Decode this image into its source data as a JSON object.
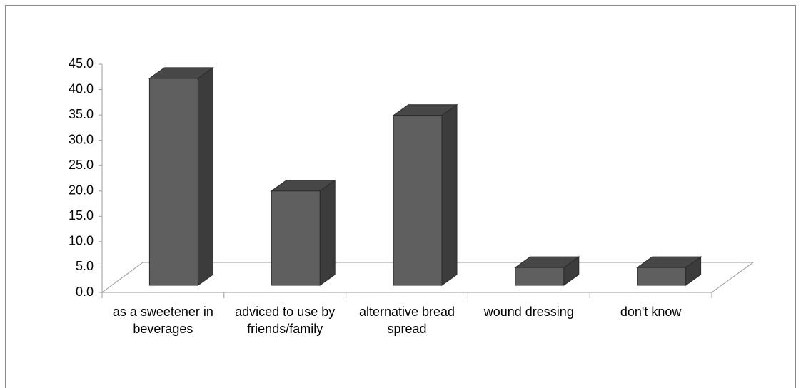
{
  "chart_data": {
    "type": "bar3d",
    "categories": [
      "as a sweetener in beverages",
      "adviced to use by friends/family",
      "alternative bread spread",
      "wound dressing",
      "don't know"
    ],
    "values": [
      40.8,
      18.6,
      33.5,
      3.5,
      3.5
    ],
    "color": "#5f5f5f",
    "ylim": [
      0,
      45
    ],
    "yticks": [
      {
        "value": 0,
        "label": "0.0"
      },
      {
        "value": 5,
        "label": "5.0"
      },
      {
        "value": 10,
        "label": "10.0"
      },
      {
        "value": 15,
        "label": "15.0"
      },
      {
        "value": 20,
        "label": "20.0"
      },
      {
        "value": 25,
        "label": "25.0"
      },
      {
        "value": 30,
        "label": "30.0"
      },
      {
        "value": 35,
        "label": "35.0"
      },
      {
        "value": 40,
        "label": "40.0"
      },
      {
        "value": 45,
        "label": "45.0"
      }
    ],
    "grid": false
  }
}
